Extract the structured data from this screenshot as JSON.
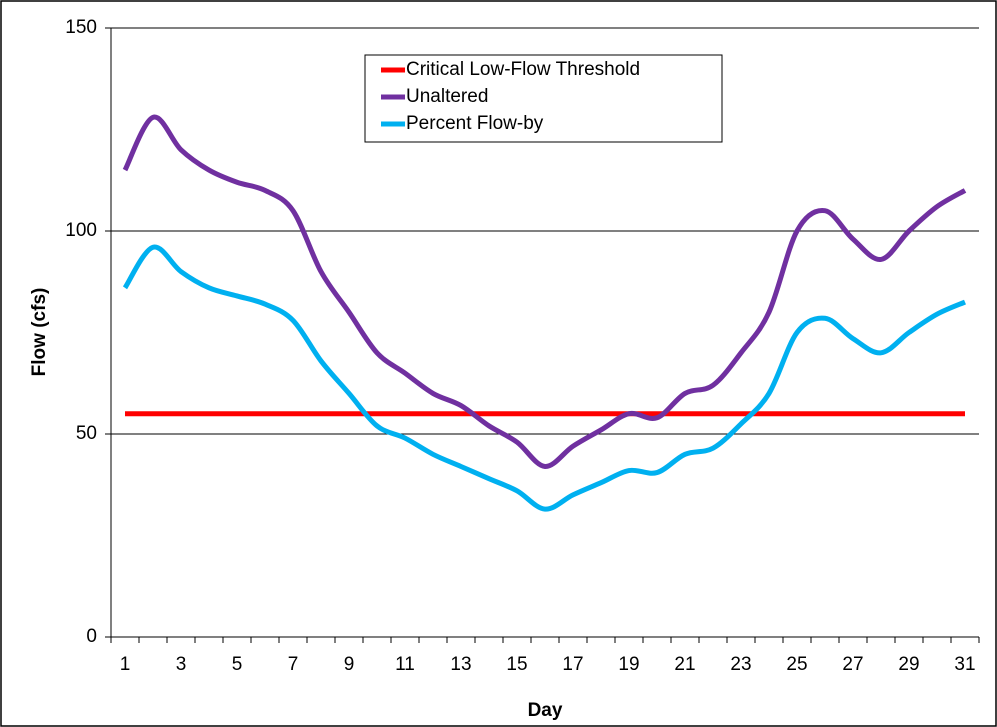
{
  "chart_data": {
    "type": "line",
    "xlabel": "Day",
    "ylabel": "Flow (cfs)",
    "categories": [
      1,
      null,
      3,
      null,
      5,
      null,
      7,
      null,
      9,
      null,
      11,
      null,
      13,
      null,
      15,
      null,
      17,
      null,
      19,
      null,
      21,
      null,
      23,
      null,
      25,
      null,
      27,
      null,
      29,
      null,
      31
    ],
    "series": [
      {
        "name": "Critical Low-Flow Threshold",
        "color": "#ff0000",
        "values": [
          55,
          55,
          55,
          55,
          55,
          55,
          55,
          55,
          55,
          55,
          55,
          55,
          55,
          55,
          55,
          55,
          55,
          55,
          55,
          55,
          55,
          55,
          55,
          55,
          55,
          55,
          55,
          55,
          55,
          55,
          55
        ]
      },
      {
        "name": "Unaltered",
        "color": "#7030a0",
        "values": [
          115,
          128,
          120,
          115,
          112,
          110,
          105,
          90,
          80,
          70,
          65,
          60,
          57,
          52,
          48,
          42,
          47,
          51,
          55,
          54,
          60,
          62,
          70,
          80,
          100,
          105,
          98,
          93,
          100,
          106,
          110
        ]
      },
      {
        "name": "Percent Flow-by",
        "color": "#00b0f0",
        "values": [
          86,
          96,
          90,
          86,
          84,
          82,
          78,
          68,
          60,
          52,
          49,
          45,
          42,
          39,
          36,
          31.5,
          35,
          38,
          41,
          40.5,
          45,
          46.5,
          52.5,
          60,
          75,
          78.5,
          73.5,
          70,
          75,
          79.5,
          82.5
        ]
      }
    ],
    "ylim": [
      0,
      150
    ],
    "yticks": [
      0,
      50,
      100,
      150
    ],
    "grid": true,
    "legend": "top"
  }
}
